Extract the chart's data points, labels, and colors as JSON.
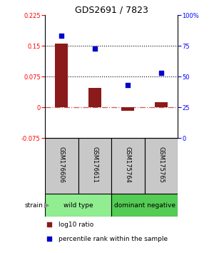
{
  "title": "GDS2691 / 7823",
  "samples": [
    "GSM176606",
    "GSM176611",
    "GSM175764",
    "GSM175765"
  ],
  "log10_ratio": [
    0.155,
    0.048,
    -0.008,
    0.012
  ],
  "percentile_rank": [
    83,
    73,
    43,
    53
  ],
  "ylim_left": [
    -0.075,
    0.225
  ],
  "ylim_right": [
    0,
    100
  ],
  "yticks_left": [
    -0.075,
    0,
    0.075,
    0.15,
    0.225
  ],
  "yticks_right": [
    0,
    25,
    50,
    75,
    100
  ],
  "ytick_labels_left": [
    "-0.075",
    "0",
    "0.075",
    "0.15",
    "0.225"
  ],
  "ytick_labels_right": [
    "0",
    "25",
    "50",
    "75",
    "100%"
  ],
  "hlines": [
    0.075,
    0.15
  ],
  "bar_color": "#8B1A1A",
  "dot_color": "#0000CD",
  "zero_line_color": "#CD5C5C",
  "strain_label": "strain",
  "group1_label": "wild type",
  "group1_color": "#90EE90",
  "group2_label": "dominant negative",
  "group2_color": "#55CC55",
  "sample_bg_color": "#C8C8C8",
  "legend_bar_label": "log10 ratio",
  "legend_dot_label": "percentile rank within the sample"
}
